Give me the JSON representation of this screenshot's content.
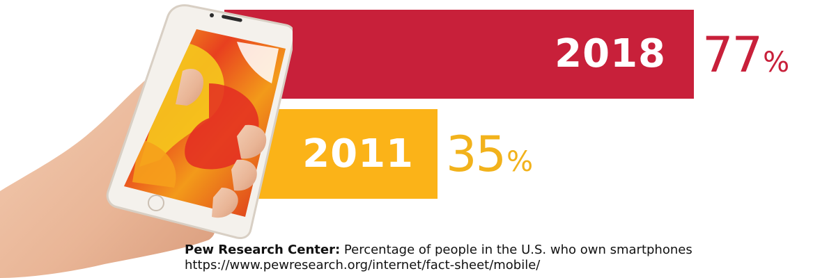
{
  "colors": {
    "bar_2018": "#c8203a",
    "bar_2011": "#fbb318",
    "label_2018": "#c8203a",
    "label_2011": "#f2b21b"
  },
  "chart_data": {
    "type": "bar",
    "orientation": "horizontal",
    "categories": [
      "2018",
      "2011"
    ],
    "values": [
      77,
      35
    ],
    "unit": "%",
    "xlim": [
      0,
      100
    ],
    "grid": false,
    "legend": "none"
  },
  "labels": {
    "bar_2018_year": "2018",
    "bar_2011_year": "2011",
    "value_2018": "77",
    "value_2011": "35",
    "unit": "%"
  },
  "source": {
    "name": "Pew Research Center:",
    "description": "Percentage of people in the U.S. who own smartphones",
    "url": "https://www.pewresearch.org/internet/fact-sheet/mobile/"
  },
  "image": {
    "hand_phone_icon": "hand-holding-phone-icon"
  }
}
